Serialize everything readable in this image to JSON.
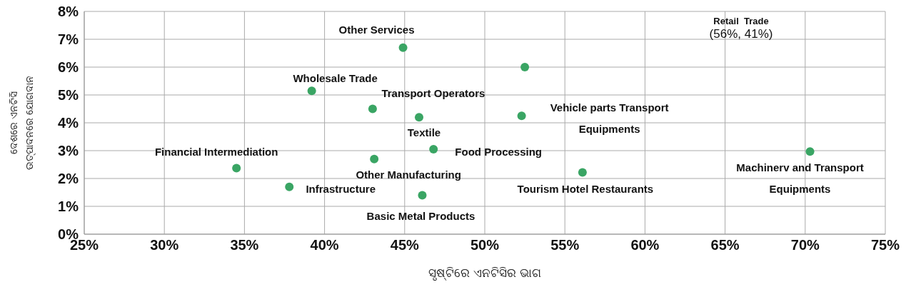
{
  "chart_data": {
    "type": "scatter",
    "xlabel": "ସୃଷ୍ଟିରେ ଏନଟିସିର ଭାଗ",
    "ylabel": "ଦେଶରେ ଏନଟିସି\nଉତ୍ପାଦନରେ ଯୋଗଦାନ",
    "series": [
      {
        "color": "#3aa564",
        "x": [
          44.9,
          52.5,
          39.2,
          43.0,
          45.9,
          52.3,
          46.8,
          34.5,
          43.1,
          70.3,
          56.1,
          37.8,
          46.1
        ],
        "values": [
          6.7,
          6.0,
          5.15,
          4.5,
          4.2,
          4.25,
          3.05,
          2.37,
          2.7,
          2.97,
          2.22,
          1.7,
          1.4
        ]
      }
    ],
    "xlim": [
      25,
      75
    ],
    "xticks": [
      {
        "value": 25,
        "label": "25%"
      },
      {
        "value": 30,
        "label": "30%"
      },
      {
        "value": 35,
        "label": "35%"
      },
      {
        "value": 40,
        "label": "40%"
      },
      {
        "value": 45,
        "label": "45%"
      },
      {
        "value": 50,
        "label": "50%"
      },
      {
        "value": 55,
        "label": "55%"
      },
      {
        "value": 60,
        "label": "60%"
      },
      {
        "value": 65,
        "label": "65%"
      },
      {
        "value": 70,
        "label": "70%"
      },
      {
        "value": 75,
        "label": "75%"
      }
    ],
    "ylim": [
      0,
      8
    ],
    "yticks": [
      {
        "value": 0,
        "label": "0%"
      },
      {
        "value": 1,
        "label": "1%"
      },
      {
        "value": 2,
        "label": "2%"
      },
      {
        "value": 3,
        "label": "3%"
      },
      {
        "value": 4,
        "label": "4%"
      },
      {
        "value": 5,
        "label": "5%"
      },
      {
        "value": 6,
        "label": "6%"
      },
      {
        "value": 7,
        "label": "7%"
      },
      {
        "value": 8,
        "label": "8%"
      }
    ],
    "grid": true,
    "marker": "circle",
    "annotations": [
      {
        "text": "Other  Services",
        "x": 44.9,
        "y": 6.7
      },
      "Retail  Trade",
      "(56%, 41%)",
      {
        "text": "Wholesale Trade",
        "x": 39.2,
        "y": 5.15
      },
      {
        "text": "Transport Operators",
        "x": 43.0,
        "y": 4.5
      },
      {
        "text": "Vehicle parts Transport\nEquipments",
        "x": 52.3,
        "y": 4.25
      },
      {
        "text": "Textile",
        "x": 45.9,
        "y": 4.2
      },
      {
        "text": "Food Processing",
        "x": 46.8,
        "y": 3.05
      },
      {
        "text": "Financial Intermediation",
        "x": 34.5,
        "y": 2.37
      },
      {
        "text": "Other Manufacturing",
        "x": 43.1,
        "y": 2.7
      },
      {
        "text": "Machinerv and Transport\nEquipments",
        "x": 70.3,
        "y": 2.97
      },
      {
        "text": "Tourism Hotel Restaurants",
        "x": 56.1,
        "y": 2.22
      },
      {
        "text": "Infrastructure",
        "x": 37.8,
        "y": 1.7
      },
      {
        "text": "Basic Metal Products",
        "x": 46.1,
        "y": 1.4
      }
    ]
  }
}
